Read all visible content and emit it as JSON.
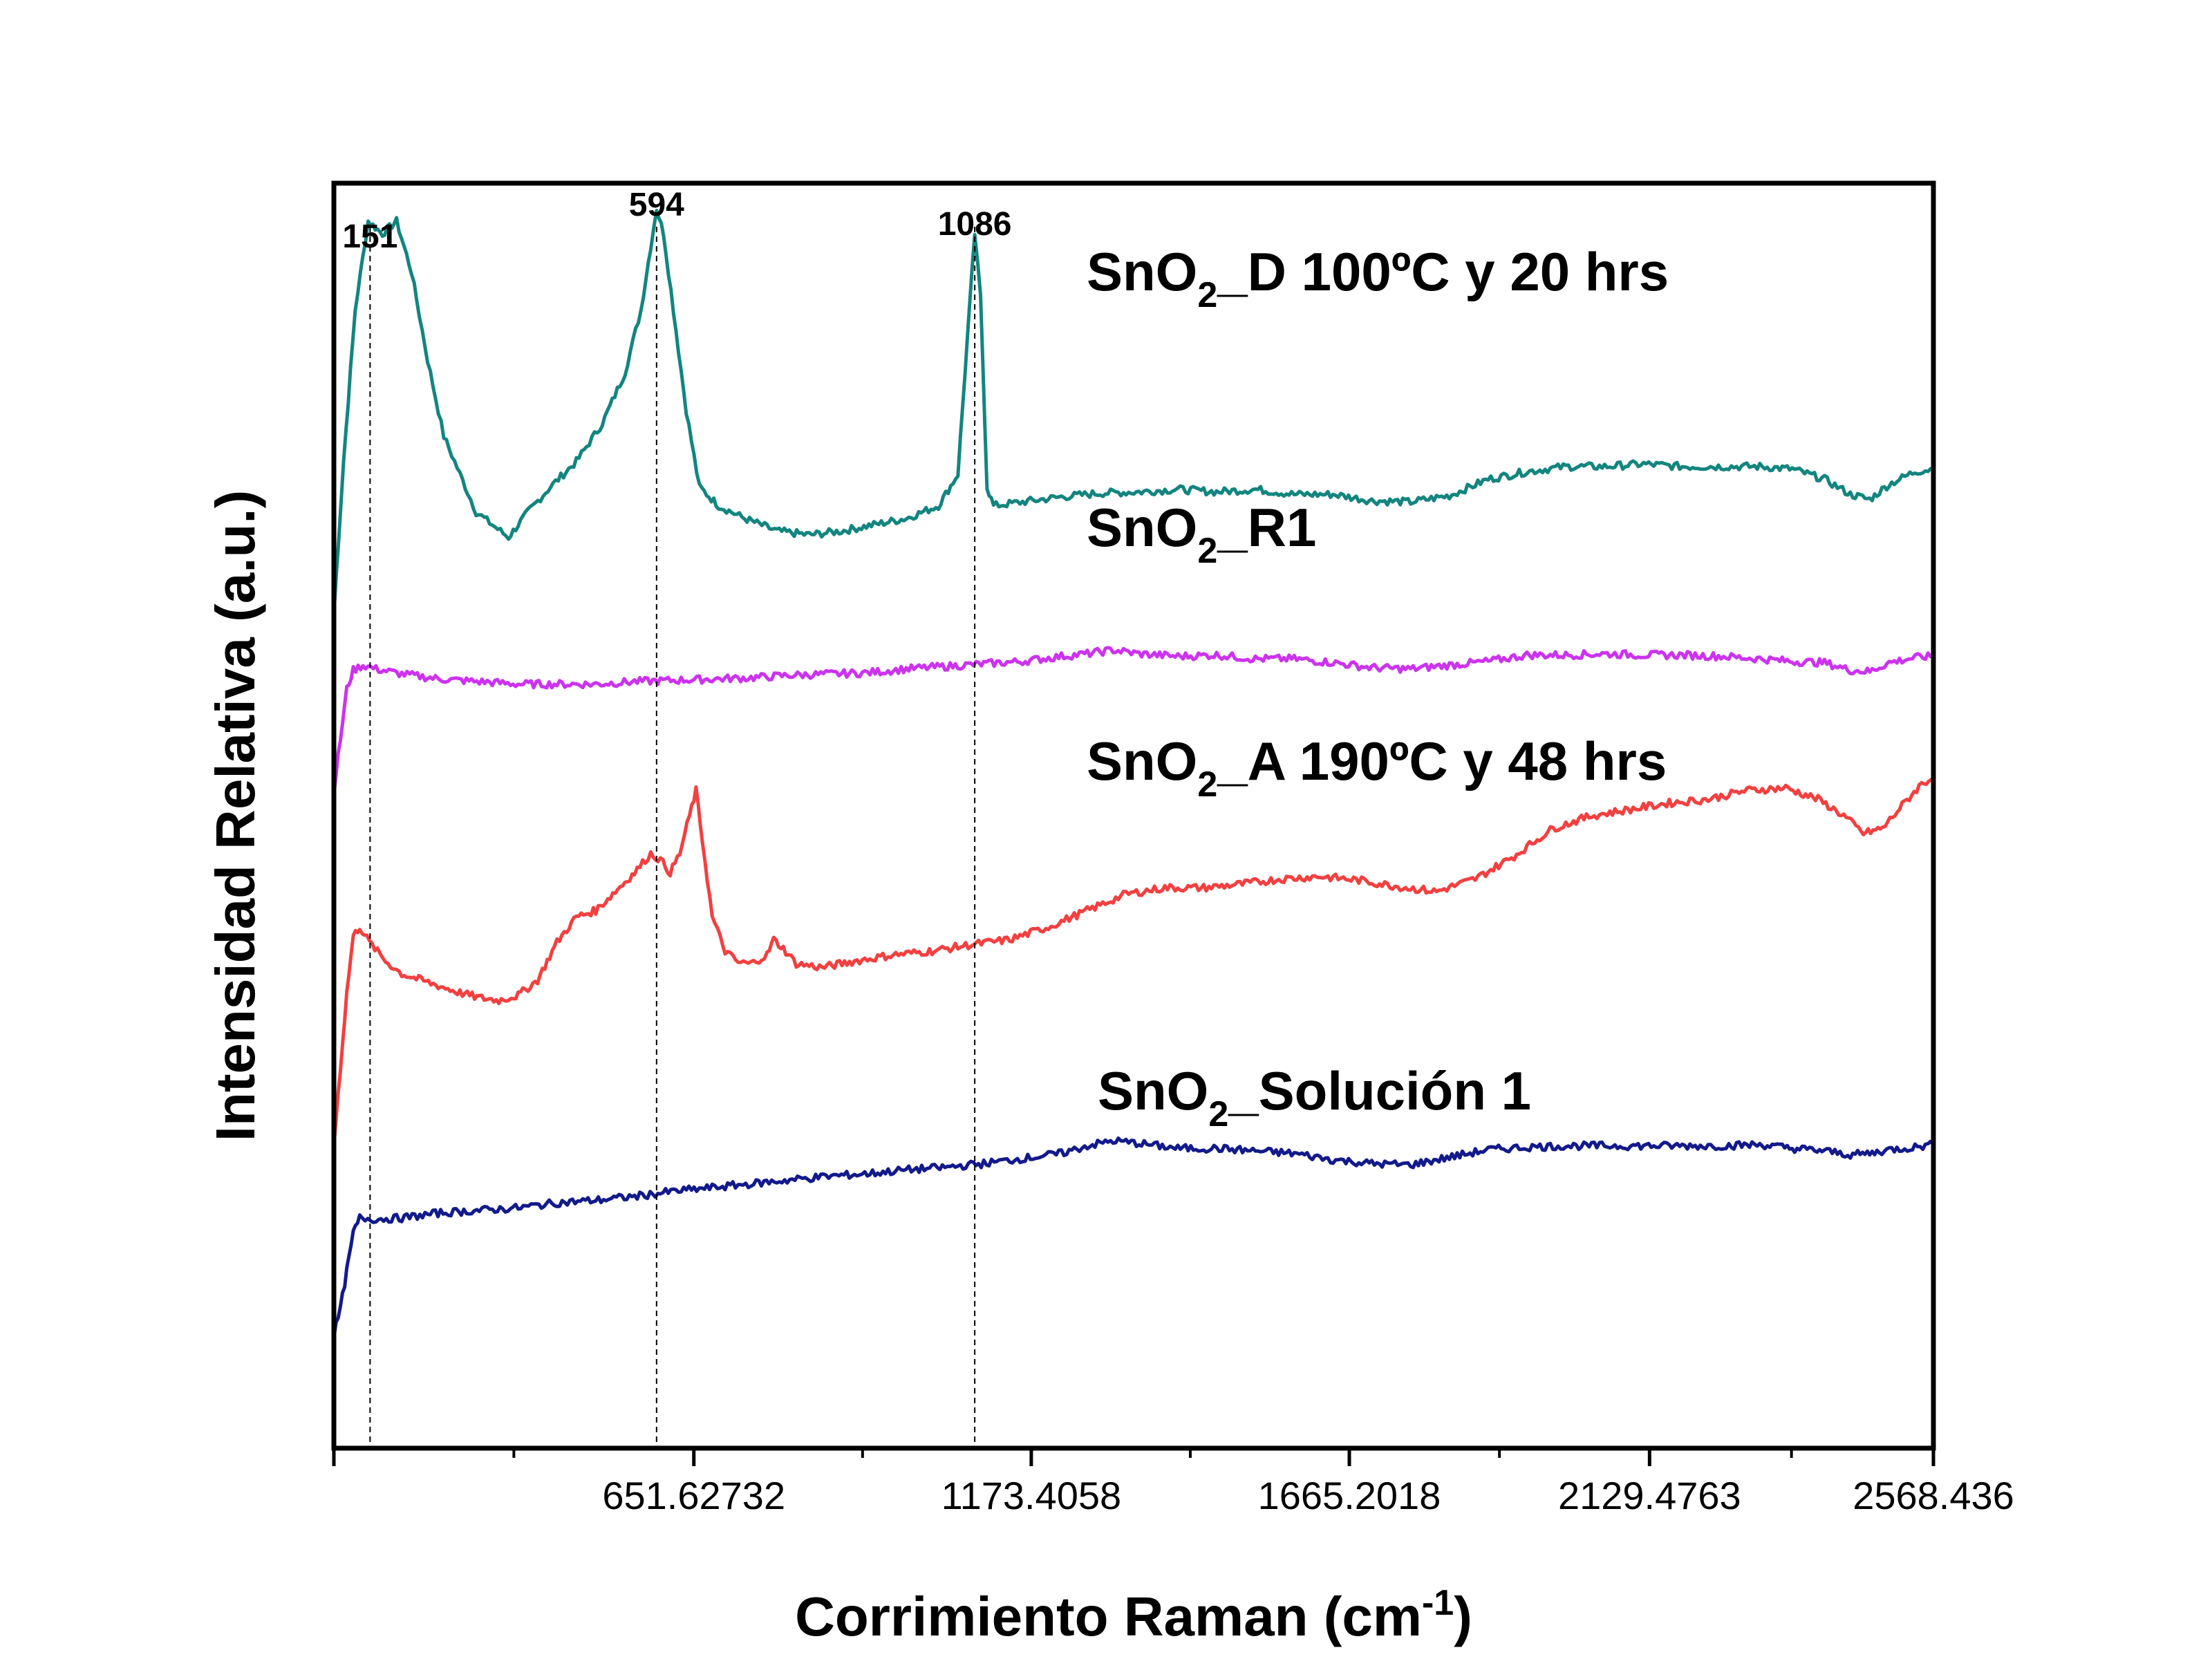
{
  "chart_data": {
    "type": "line",
    "title": "",
    "xlabel": "Corrimiento Raman (cm",
    "xlabel_sup": "-1",
    "xlabel_end": ")",
    "ylabel": "Intensidad Relativa (a.u.)",
    "xlim": [
      95,
      2568.436
    ],
    "x_tick_labels": [
      {
        "value": 651.62732,
        "label": "651.62732"
      },
      {
        "value": 1173.4058,
        "label": "1173.4058"
      },
      {
        "value": 1665.2018,
        "label": "1665.2018"
      },
      {
        "value": 2129.4763,
        "label": "2129.4763"
      },
      {
        "value": 2568.436,
        "label": "2568.436"
      }
    ],
    "y_ticks": false,
    "grid": false,
    "legend": "inline labels above each trace",
    "peak_markers": [
      {
        "x": 151,
        "label": "151"
      },
      {
        "x": 594,
        "label": "594"
      },
      {
        "x": 1086,
        "label": "1086"
      }
    ],
    "series": [
      {
        "id": "d",
        "label": {
          "pre": "SnO",
          "sub": "2",
          "post": "_D 100ºC y 20 hrs"
        },
        "color": "#13857f",
        "points": [
          [
            95,
            0.66
          ],
          [
            110,
            0.78
          ],
          [
            128,
            0.9
          ],
          [
            148,
            0.97
          ],
          [
            170,
            0.96
          ],
          [
            192,
            0.97
          ],
          [
            215,
            0.93
          ],
          [
            240,
            0.86
          ],
          [
            265,
            0.8
          ],
          [
            290,
            0.77
          ],
          [
            315,
            0.74
          ],
          [
            340,
            0.73
          ],
          [
            365,
            0.72
          ],
          [
            395,
            0.74
          ],
          [
            430,
            0.76
          ],
          [
            470,
            0.78
          ],
          [
            510,
            0.81
          ],
          [
            545,
            0.85
          ],
          [
            570,
            0.9
          ],
          [
            585,
            0.95
          ],
          [
            594,
            0.98
          ],
          [
            605,
            0.96
          ],
          [
            620,
            0.9
          ],
          [
            640,
            0.82
          ],
          [
            660,
            0.76
          ],
          [
            690,
            0.745
          ],
          [
            730,
            0.735
          ],
          [
            780,
            0.725
          ],
          [
            830,
            0.722
          ],
          [
            880,
            0.725
          ],
          [
            930,
            0.73
          ],
          [
            980,
            0.735
          ],
          [
            1030,
            0.745
          ],
          [
            1060,
            0.77
          ],
          [
            1075,
            0.88
          ],
          [
            1086,
            0.96
          ],
          [
            1095,
            0.91
          ],
          [
            1105,
            0.76
          ],
          [
            1115,
            0.745
          ],
          [
            1160,
            0.748
          ],
          [
            1220,
            0.752
          ],
          [
            1280,
            0.755
          ],
          [
            1340,
            0.756
          ],
          [
            1400,
            0.758
          ],
          [
            1460,
            0.756
          ],
          [
            1520,
            0.758
          ],
          [
            1580,
            0.754
          ],
          [
            1640,
            0.754
          ],
          [
            1700,
            0.749
          ],
          [
            1760,
            0.748
          ],
          [
            1820,
            0.753
          ],
          [
            1880,
            0.766
          ],
          [
            1940,
            0.772
          ],
          [
            2000,
            0.776
          ],
          [
            2060,
            0.776
          ],
          [
            2120,
            0.778
          ],
          [
            2180,
            0.776
          ],
          [
            2240,
            0.776
          ],
          [
            2300,
            0.776
          ],
          [
            2350,
            0.774
          ],
          [
            2400,
            0.766
          ],
          [
            2440,
            0.754
          ],
          [
            2470,
            0.75
          ],
          [
            2500,
            0.762
          ],
          [
            2540,
            0.772
          ],
          [
            2568,
            0.774
          ]
        ]
      },
      {
        "id": "r1",
        "label": {
          "pre": "SnO",
          "sub": "2",
          "post": "_R1"
        },
        "color": "#cc33ee",
        "points": [
          [
            95,
            0.52
          ],
          [
            105,
            0.56
          ],
          [
            115,
            0.6
          ],
          [
            125,
            0.615
          ],
          [
            140,
            0.619
          ],
          [
            160,
            0.616
          ],
          [
            200,
            0.612
          ],
          [
            260,
            0.608
          ],
          [
            320,
            0.606
          ],
          [
            380,
            0.604
          ],
          [
            440,
            0.604
          ],
          [
            500,
            0.604
          ],
          [
            560,
            0.606
          ],
          [
            620,
            0.607
          ],
          [
            680,
            0.608
          ],
          [
            740,
            0.609
          ],
          [
            800,
            0.611
          ],
          [
            860,
            0.612
          ],
          [
            920,
            0.613
          ],
          [
            980,
            0.616
          ],
          [
            1040,
            0.618
          ],
          [
            1100,
            0.62
          ],
          [
            1160,
            0.622
          ],
          [
            1220,
            0.626
          ],
          [
            1260,
            0.628
          ],
          [
            1300,
            0.631
          ],
          [
            1340,
            0.628
          ],
          [
            1400,
            0.626
          ],
          [
            1460,
            0.627
          ],
          [
            1520,
            0.624
          ],
          [
            1580,
            0.624
          ],
          [
            1640,
            0.621
          ],
          [
            1700,
            0.617
          ],
          [
            1760,
            0.616
          ],
          [
            1820,
            0.619
          ],
          [
            1880,
            0.622
          ],
          [
            1940,
            0.627
          ],
          [
            2000,
            0.627
          ],
          [
            2060,
            0.628
          ],
          [
            2120,
            0.627
          ],
          [
            2180,
            0.627
          ],
          [
            2240,
            0.626
          ],
          [
            2300,
            0.624
          ],
          [
            2350,
            0.622
          ],
          [
            2400,
            0.621
          ],
          [
            2440,
            0.615
          ],
          [
            2470,
            0.614
          ],
          [
            2500,
            0.621
          ],
          [
            2540,
            0.625
          ],
          [
            2568,
            0.626
          ]
        ]
      },
      {
        "id": "a",
        "label": {
          "pre": "SnO",
          "sub": "2",
          "post": "_A 190ºC y 48 hrs"
        },
        "color": "#f24040",
        "points": [
          [
            95,
            0.24
          ],
          [
            105,
            0.3
          ],
          [
            115,
            0.36
          ],
          [
            125,
            0.405
          ],
          [
            135,
            0.412
          ],
          [
            150,
            0.4
          ],
          [
            175,
            0.385
          ],
          [
            200,
            0.375
          ],
          [
            230,
            0.37
          ],
          [
            260,
            0.365
          ],
          [
            290,
            0.36
          ],
          [
            320,
            0.356
          ],
          [
            350,
            0.354
          ],
          [
            380,
            0.358
          ],
          [
            410,
            0.37
          ],
          [
            440,
            0.4
          ],
          [
            470,
            0.42
          ],
          [
            500,
            0.425
          ],
          [
            530,
            0.44
          ],
          [
            560,
            0.455
          ],
          [
            585,
            0.47
          ],
          [
            600,
            0.465
          ],
          [
            615,
            0.455
          ],
          [
            630,
            0.47
          ],
          [
            645,
            0.5
          ],
          [
            655,
            0.52
          ],
          [
            665,
            0.48
          ],
          [
            680,
            0.42
          ],
          [
            700,
            0.393
          ],
          [
            720,
            0.384
          ],
          [
            740,
            0.383
          ],
          [
            765,
            0.39
          ],
          [
            775,
            0.402
          ],
          [
            790,
            0.395
          ],
          [
            810,
            0.383
          ],
          [
            850,
            0.38
          ],
          [
            900,
            0.385
          ],
          [
            960,
            0.39
          ],
          [
            1020,
            0.393
          ],
          [
            1080,
            0.398
          ],
          [
            1140,
            0.402
          ],
          [
            1200,
            0.412
          ],
          [
            1260,
            0.425
          ],
          [
            1320,
            0.438
          ],
          [
            1380,
            0.443
          ],
          [
            1440,
            0.443
          ],
          [
            1500,
            0.446
          ],
          [
            1560,
            0.45
          ],
          [
            1620,
            0.452
          ],
          [
            1680,
            0.449
          ],
          [
            1740,
            0.444
          ],
          [
            1800,
            0.44
          ],
          [
            1860,
            0.45
          ],
          [
            1920,
            0.468
          ],
          [
            1980,
            0.49
          ],
          [
            2040,
            0.5
          ],
          [
            2100,
            0.505
          ],
          [
            2160,
            0.51
          ],
          [
            2220,
            0.513
          ],
          [
            2280,
            0.52
          ],
          [
            2340,
            0.522
          ],
          [
            2390,
            0.513
          ],
          [
            2430,
            0.5
          ],
          [
            2460,
            0.486
          ],
          [
            2490,
            0.49
          ],
          [
            2520,
            0.508
          ],
          [
            2550,
            0.525
          ],
          [
            2568,
            0.53
          ]
        ]
      },
      {
        "id": "s1",
        "label": {
          "pre": "SnO",
          "sub": "2",
          "post": "_Solución 1"
        },
        "color": "#131a8a",
        "points": [
          [
            95,
            0.09
          ],
          [
            105,
            0.11
          ],
          [
            115,
            0.14
          ],
          [
            125,
            0.17
          ],
          [
            135,
            0.182
          ],
          [
            160,
            0.181
          ],
          [
            200,
            0.182
          ],
          [
            260,
            0.186
          ],
          [
            320,
            0.188
          ],
          [
            380,
            0.19
          ],
          [
            440,
            0.194
          ],
          [
            500,
            0.196
          ],
          [
            560,
            0.199
          ],
          [
            620,
            0.203
          ],
          [
            680,
            0.206
          ],
          [
            740,
            0.209
          ],
          [
            800,
            0.212
          ],
          [
            860,
            0.215
          ],
          [
            920,
            0.217
          ],
          [
            980,
            0.22
          ],
          [
            1040,
            0.222
          ],
          [
            1100,
            0.225
          ],
          [
            1160,
            0.229
          ],
          [
            1220,
            0.233
          ],
          [
            1260,
            0.239
          ],
          [
            1300,
            0.243
          ],
          [
            1340,
            0.241
          ],
          [
            1400,
            0.237
          ],
          [
            1460,
            0.237
          ],
          [
            1520,
            0.235
          ],
          [
            1580,
            0.233
          ],
          [
            1640,
            0.228
          ],
          [
            1700,
            0.225
          ],
          [
            1760,
            0.224
          ],
          [
            1820,
            0.23
          ],
          [
            1880,
            0.236
          ],
          [
            1940,
            0.238
          ],
          [
            2000,
            0.239
          ],
          [
            2060,
            0.239
          ],
          [
            2120,
            0.239
          ],
          [
            2180,
            0.239
          ],
          [
            2240,
            0.239
          ],
          [
            2300,
            0.24
          ],
          [
            2350,
            0.237
          ],
          [
            2400,
            0.235
          ],
          [
            2440,
            0.232
          ],
          [
            2470,
            0.233
          ],
          [
            2500,
            0.236
          ],
          [
            2540,
            0.238
          ],
          [
            2568,
            0.24
          ]
        ]
      }
    ]
  }
}
